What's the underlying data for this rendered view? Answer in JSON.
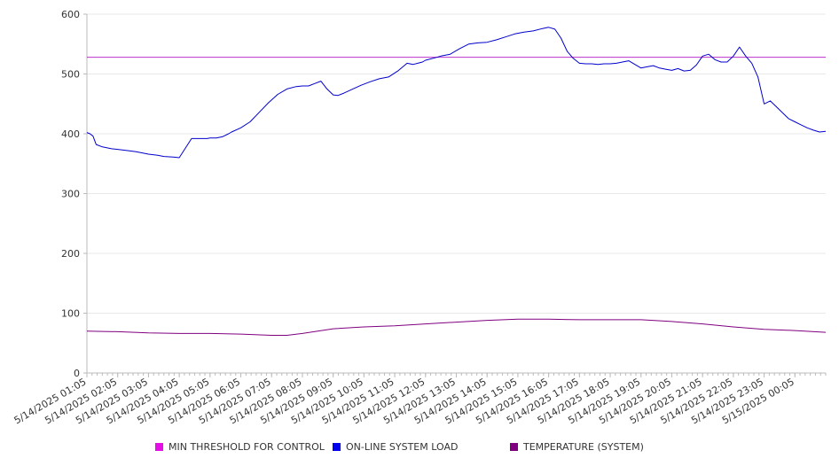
{
  "colors": {
    "threshold": "#e60ee6",
    "threshold_line": "#bb33cc",
    "load": "#0000cc",
    "load_swatch": "#0000ee",
    "temperature": "#800080",
    "grid": "#e8e8e8",
    "axis": "#bbbbbb"
  },
  "legend": {
    "threshold": "MIN THRESHOLD FOR CONTROL",
    "load": "ON-LINE SYSTEM LOAD",
    "temperature": "TEMPERATURE (SYSTEM)"
  },
  "chart_data": {
    "type": "line",
    "title": "",
    "xlabel": "",
    "ylabel": "",
    "ylim": [
      0,
      600
    ],
    "yticks": [
      0,
      100,
      200,
      300,
      400,
      500,
      600
    ],
    "grid": true,
    "legend_position": "bottom",
    "x_tick_labels": [
      "5/14/2025 01:05",
      "5/14/2025 02:05",
      "5/14/2025 03:05",
      "5/14/2025 04:05",
      "5/14/2025 05:05",
      "5/14/2025 06:05",
      "5/14/2025 07:05",
      "5/14/2025 08:05",
      "5/14/2025 09:05",
      "5/14/2025 10:05",
      "5/14/2025 11:05",
      "5/14/2025 12:05",
      "5/14/2025 13:05",
      "5/14/2025 14:05",
      "5/14/2025 15:05",
      "5/14/2025 16:05",
      "5/14/2025 17:05",
      "5/14/2025 18:05",
      "5/14/2025 19:05",
      "5/14/2025 20:05",
      "5/14/2025 21:05",
      "5/14/2025 22:05",
      "5/14/2025 23:05",
      "5/15/2025 00:05"
    ],
    "x_range_hours": [
      0,
      24
    ],
    "series": [
      {
        "name": "MIN THRESHOLD FOR CONTROL",
        "x": [
          0,
          24
        ],
        "values": [
          528,
          528
        ]
      },
      {
        "name": "ON-LINE SYSTEM LOAD",
        "x": [
          0,
          0.1,
          0.2,
          0.3,
          0.5,
          0.8,
          1.0,
          1.3,
          1.6,
          1.8,
          2.0,
          2.3,
          2.5,
          2.8,
          3.0,
          3.4,
          3.7,
          3.9,
          4.0,
          4.2,
          4.4,
          4.6,
          4.7,
          5.0,
          5.3,
          5.6,
          5.9,
          6.2,
          6.5,
          6.8,
          7.0,
          7.2,
          7.4,
          7.6,
          7.8,
          8.0,
          8.15,
          8.35,
          8.6,
          8.9,
          9.2,
          9.5,
          9.8,
          10.1,
          10.4,
          10.6,
          10.75,
          10.9,
          11.0,
          11.3,
          11.5,
          11.8,
          12.1,
          12.4,
          12.7,
          13.0,
          13.3,
          13.6,
          13.9,
          14.2,
          14.5,
          14.8,
          15.0,
          15.2,
          15.4,
          15.6,
          15.8,
          16.0,
          16.2,
          16.4,
          16.6,
          16.8,
          17.0,
          17.2,
          17.4,
          17.6,
          17.8,
          18.0,
          18.2,
          18.4,
          18.6,
          18.8,
          19.0,
          19.2,
          19.4,
          19.6,
          19.8,
          20.0,
          20.2,
          20.4,
          20.6,
          20.8,
          21.0,
          21.2,
          21.4,
          21.6,
          21.8,
          22.0,
          22.2,
          22.4,
          22.6,
          22.8,
          23.0,
          23.2,
          23.4,
          23.6,
          23.8,
          24.0
        ],
        "values": [
          402,
          400,
          396,
          382,
          378,
          375,
          374,
          372,
          370,
          368,
          366,
          364,
          362,
          361,
          360,
          392,
          392,
          392,
          393,
          393,
          395,
          400,
          403,
          410,
          420,
          436,
          452,
          466,
          475,
          479,
          480,
          480,
          484,
          488,
          475,
          465,
          464,
          468,
          474,
          481,
          487,
          492,
          495,
          505,
          518,
          516,
          518,
          520,
          523,
          527,
          530,
          533,
          542,
          550,
          552,
          553,
          557,
          562,
          567,
          570,
          572,
          576,
          578,
          575,
          560,
          538,
          526,
          518,
          517,
          517,
          516,
          517,
          517,
          518,
          520,
          522,
          516,
          510,
          512,
          514,
          510,
          508,
          506,
          509,
          505,
          506,
          515,
          530,
          533,
          524,
          520,
          520,
          530,
          545,
          530,
          518,
          495,
          450,
          455,
          445,
          435,
          425,
          420,
          415,
          410,
          406,
          403,
          404
        ]
      },
      {
        "name": "TEMPERATURE (SYSTEM)",
        "x": [
          0,
          1,
          2,
          3,
          4,
          5,
          6,
          6.5,
          7,
          7.5,
          8,
          9,
          10,
          11,
          12,
          13,
          14,
          15,
          16,
          17,
          18,
          19,
          20,
          21,
          22,
          23,
          24
        ],
        "values": [
          70,
          69,
          67,
          66,
          66,
          65,
          63,
          63,
          66,
          70,
          74,
          77,
          79,
          82,
          85,
          88,
          90,
          90,
          89,
          89,
          89,
          86,
          82,
          77,
          73,
          71,
          68
        ]
      }
    ]
  }
}
